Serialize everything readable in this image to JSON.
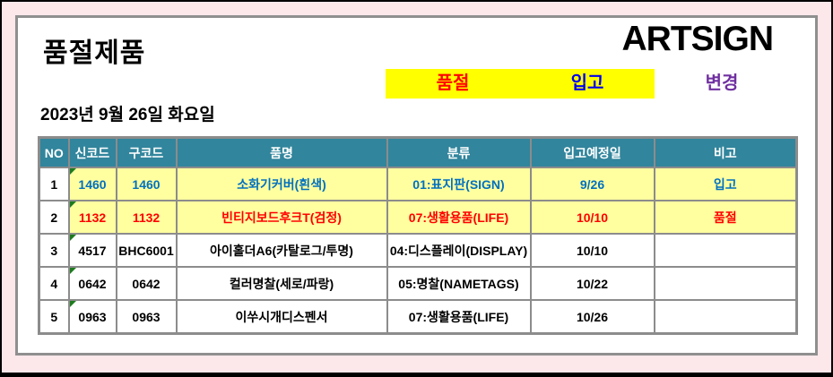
{
  "page": {
    "title": "품절제품",
    "brand": "ARTSIGN",
    "date": "2023년 9월 26일 화요일"
  },
  "legend": {
    "soldout_label": "품절",
    "arrival_label": "입고",
    "change_label": "변경"
  },
  "table": {
    "headers": [
      "NO",
      "신코드",
      "구코드",
      "품명",
      "분류",
      "입고예정일",
      "비고"
    ],
    "rows": [
      {
        "no": "1",
        "new_code": "1460",
        "old_code": "1460",
        "name": "소화기커버(흰색)",
        "category": "01:표지판(SIGN)",
        "due_date": "9/26",
        "note": "입고",
        "style": "arrival"
      },
      {
        "no": "2",
        "new_code": "1132",
        "old_code": "1132",
        "name": "빈티지보드후크T(검정)",
        "category": "07:생활용품(LIFE)",
        "due_date": "10/10",
        "note": "품절",
        "style": "soldout"
      },
      {
        "no": "3",
        "new_code": "4517",
        "old_code": "BHC6001",
        "name": "아이홀더A6(카탈로그/투명)",
        "category": "04:디스플레이(DISPLAY)",
        "due_date": "10/10",
        "note": "",
        "style": "normal"
      },
      {
        "no": "4",
        "new_code": "0642",
        "old_code": "0642",
        "name": "컬러명찰(세로/파랑)",
        "category": "05:명찰(NAMETAGS)",
        "due_date": "10/22",
        "note": "",
        "style": "normal"
      },
      {
        "no": "5",
        "new_code": "0963",
        "old_code": "0963",
        "name": "이쑤시개디스펜서",
        "category": "07:생활용품(LIFE)",
        "due_date": "10/26",
        "note": "",
        "style": "normal"
      }
    ]
  },
  "colors": {
    "page_background": "#fce7eb",
    "legend_background": "#ffff00",
    "soldout_text": "#ff0000",
    "arrival_text_table": "#0070c0",
    "arrival_text_legend": "#0000ee",
    "change_text": "#7030a0",
    "table_header_background": "#31859c",
    "row_highlight_background": "#ffffa0",
    "comment_triangle": "#1e7b1e"
  }
}
